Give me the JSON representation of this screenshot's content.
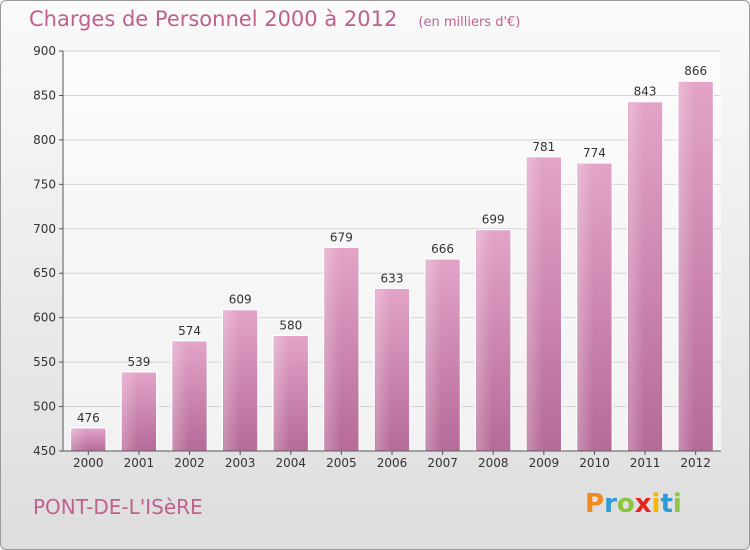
{
  "title": "Charges de Personnel 2000 à 2012",
  "subtitle": "(en milliers d'€)",
  "commune": "PONT-DE-L'ISèRE",
  "logo": {
    "letters": [
      "P",
      "r",
      "o",
      "x",
      "i",
      "t",
      "i"
    ],
    "colors": [
      "#f08a1c",
      "#2e9ad6",
      "#8cc63f",
      "#e52521",
      "#f7b500",
      "#2e9ad6",
      "#8cc63f"
    ]
  },
  "chart_data": {
    "type": "bar",
    "categories": [
      "2000",
      "2001",
      "2002",
      "2003",
      "2004",
      "2005",
      "2006",
      "2007",
      "2008",
      "2009",
      "2010",
      "2011",
      "2012"
    ],
    "values": [
      476,
      539,
      574,
      609,
      580,
      679,
      633,
      666,
      699,
      781,
      774,
      843,
      866
    ],
    "ylim": [
      450,
      900
    ],
    "yticks": [
      450,
      500,
      550,
      600,
      650,
      700,
      750,
      800,
      850,
      900
    ],
    "grid": true,
    "bar_color": "#d487b3"
  }
}
